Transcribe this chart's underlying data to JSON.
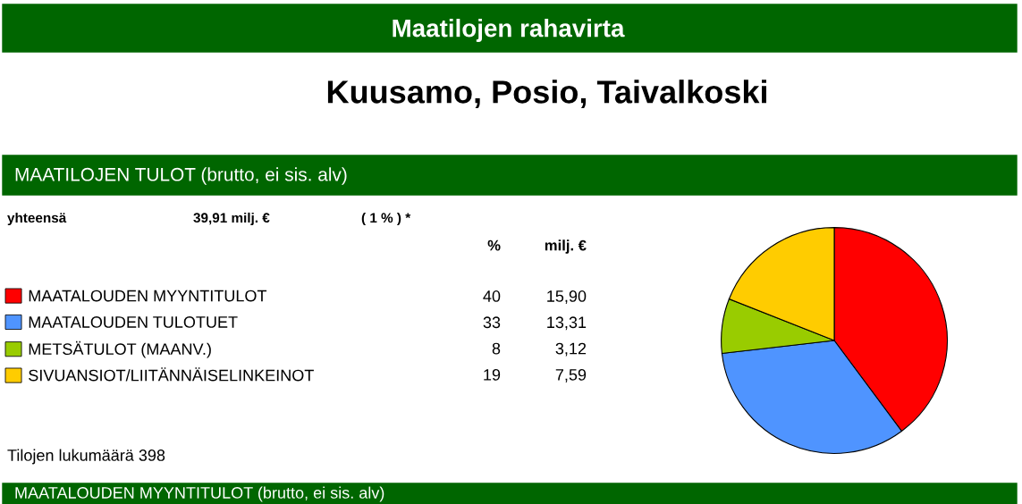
{
  "chart_data": {
    "type": "pie",
    "title": "Maatilojen rahavirta",
    "subtitle": "Kuusamo, Posio, Taivalkoski",
    "categories": [
      "MAATALOUDEN MYYNTITULOT",
      "MAATALOUDEN TULOTUET",
      "METSÄTULOT (MAANV.)",
      "SIVUANSIOT/LIITÄNNÄISELINKEINOT"
    ],
    "values": [
      15.9,
      13.31,
      3.12,
      7.59
    ],
    "colors": [
      "#ff0000",
      "#4f94ff",
      "#99cc00",
      "#ffcc00"
    ],
    "value_labels": [
      "15,90",
      "13,31",
      "3,12",
      "7,59"
    ],
    "legend": "left",
    "annotations": [
      "MAATILOJEN TULOT (brutto, ei sis. alv)",
      "yhteensä",
      "39,91 milj. €",
      "( 1 % ) *",
      "%",
      "milj. €",
      "Tilojen lukumäärä 398",
      "MAATALOUDEN MYYNTITULOT (brutto, ei sis. alv)",
      "40",
      "33",
      "8",
      "19"
    ]
  }
}
